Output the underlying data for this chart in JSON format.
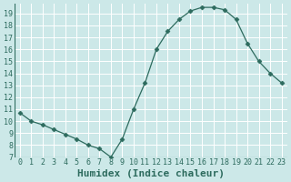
{
  "x": [
    0,
    1,
    2,
    3,
    4,
    5,
    6,
    7,
    8,
    9,
    10,
    11,
    12,
    13,
    14,
    15,
    16,
    17,
    18,
    19,
    20,
    21,
    22,
    23
  ],
  "y": [
    10.7,
    10.0,
    9.7,
    9.3,
    8.9,
    8.5,
    8.0,
    7.7,
    7.0,
    8.5,
    11.0,
    13.2,
    16.0,
    17.5,
    18.5,
    19.2,
    19.5,
    19.5,
    19.3,
    18.5,
    16.5,
    15.0,
    14.0,
    13.2
  ],
  "xlabel": "Humidex (Indice chaleur)",
  "ylim": [
    7,
    19.8
  ],
  "xlim": [
    -0.5,
    23.5
  ],
  "yticks": [
    7,
    8,
    9,
    10,
    11,
    12,
    13,
    14,
    15,
    16,
    17,
    18,
    19
  ],
  "xticks": [
    0,
    1,
    2,
    3,
    4,
    5,
    6,
    7,
    8,
    9,
    10,
    11,
    12,
    13,
    14,
    15,
    16,
    17,
    18,
    19,
    20,
    21,
    22,
    23
  ],
  "xtick_labels": [
    "0",
    "1",
    "2",
    "3",
    "4",
    "5",
    "6",
    "7",
    "8",
    "9",
    "10",
    "11",
    "12",
    "13",
    "14",
    "15",
    "16",
    "17",
    "18",
    "19",
    "20",
    "21",
    "22",
    "23"
  ],
  "line_color": "#2d6b5e",
  "marker": "D",
  "marker_size": 2.5,
  "bg_color": "#cce8e8",
  "grid_color": "#ffffff",
  "label_color": "#2d6b5e",
  "tick_color": "#2d6b5e",
  "xlabel_fontsize": 8,
  "tick_fontsize": 6
}
